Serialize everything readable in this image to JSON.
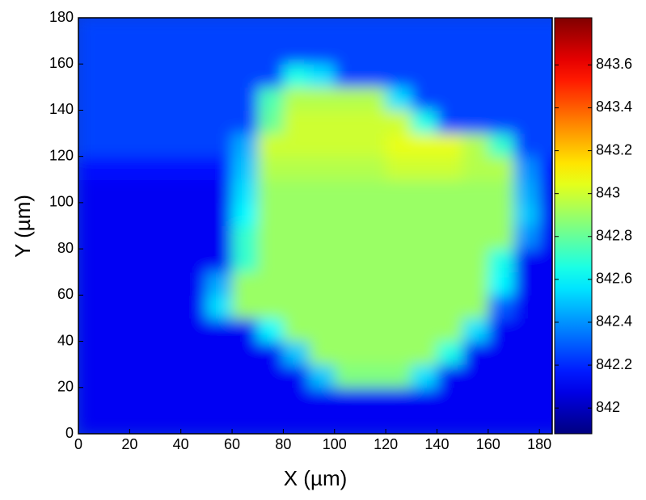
{
  "chart_data": {
    "type": "heatmap",
    "colormap": "jet",
    "xlabel": "X (µm)",
    "ylabel": "Y (µm)",
    "xlim": [
      0,
      185
    ],
    "ylim": [
      0,
      180
    ],
    "xticks": [
      0,
      20,
      40,
      60,
      80,
      100,
      120,
      140,
      160,
      180
    ],
    "yticks": [
      0,
      20,
      40,
      60,
      80,
      100,
      120,
      140,
      160,
      180
    ],
    "clim": [
      841.88,
      843.82
    ],
    "colorbar_ticks": [
      842,
      842.2,
      842.4,
      842.6,
      842.8,
      843,
      843.2,
      843.4,
      843.6
    ],
    "x": [
      5,
      15,
      25,
      35,
      45,
      55,
      65,
      75,
      85,
      95,
      105,
      115,
      125,
      135,
      145,
      155,
      165,
      175,
      185
    ],
    "y": [
      5,
      15,
      25,
      35,
      45,
      55,
      65,
      75,
      85,
      95,
      105,
      115,
      125,
      135,
      145,
      155,
      165,
      175
    ],
    "z": [
      [
        842.1,
        842.1,
        842.1,
        842.1,
        842.1,
        842.1,
        842.1,
        842.1,
        842.1,
        842.1,
        842.1,
        842.1,
        842.1,
        842.1,
        842.1,
        842.1,
        842.1,
        842.1,
        842.1
      ],
      [
        842.1,
        842.1,
        842.1,
        842.1,
        842.1,
        842.1,
        842.1,
        842.1,
        842.1,
        842.1,
        842.1,
        842.1,
        842.1,
        842.1,
        842.1,
        842.1,
        842.1,
        842.1,
        842.1
      ],
      [
        842.1,
        842.1,
        842.1,
        842.1,
        842.1,
        842.1,
        842.1,
        842.1,
        842.1,
        842.5,
        842.85,
        842.85,
        842.85,
        842.55,
        842.1,
        842.1,
        842.1,
        842.1,
        842.1
      ],
      [
        842.1,
        842.1,
        842.1,
        842.1,
        842.1,
        842.1,
        842.1,
        842.1,
        842.5,
        842.9,
        842.9,
        842.9,
        842.9,
        842.9,
        842.65,
        842.1,
        842.1,
        842.1,
        842.1
      ],
      [
        842.1,
        842.1,
        842.1,
        842.1,
        842.1,
        842.1,
        842.1,
        842.6,
        842.9,
        842.9,
        842.9,
        842.9,
        842.9,
        842.9,
        842.9,
        842.55,
        842.1,
        842.1,
        842.1
      ],
      [
        842.1,
        842.1,
        842.1,
        842.1,
        842.1,
        842.55,
        842.9,
        842.9,
        842.9,
        842.9,
        842.9,
        842.9,
        842.9,
        842.9,
        842.9,
        842.9,
        842.3,
        842.1,
        842.1
      ],
      [
        842.1,
        842.1,
        842.1,
        842.1,
        842.1,
        842.45,
        842.9,
        842.9,
        842.9,
        842.9,
        842.9,
        842.9,
        842.9,
        842.9,
        842.9,
        842.9,
        842.6,
        842.1,
        842.1
      ],
      [
        842.1,
        842.1,
        842.1,
        842.1,
        842.1,
        842.1,
        842.7,
        842.9,
        842.9,
        842.9,
        842.9,
        842.9,
        842.9,
        842.9,
        842.9,
        842.9,
        842.65,
        842.1,
        842.1
      ],
      [
        842.1,
        842.1,
        842.1,
        842.1,
        842.1,
        842.1,
        842.7,
        842.9,
        842.9,
        842.9,
        842.9,
        842.9,
        842.9,
        842.9,
        842.9,
        842.9,
        842.9,
        842.4,
        842.1
      ],
      [
        842.1,
        842.1,
        842.1,
        842.1,
        842.1,
        842.1,
        842.6,
        842.9,
        842.9,
        842.9,
        842.9,
        842.9,
        842.9,
        842.9,
        842.9,
        842.9,
        842.9,
        842.5,
        842.1
      ],
      [
        842.1,
        842.1,
        842.1,
        842.1,
        842.1,
        842.1,
        842.55,
        842.9,
        842.9,
        842.9,
        842.9,
        842.9,
        842.9,
        842.9,
        842.9,
        842.9,
        842.9,
        842.45,
        842.1
      ],
      [
        842.15,
        842.15,
        842.15,
        842.15,
        842.15,
        842.15,
        842.5,
        842.95,
        842.95,
        842.95,
        842.95,
        842.95,
        843,
        843,
        843,
        842.95,
        842.95,
        842.4,
        842.15
      ],
      [
        842.25,
        842.25,
        842.25,
        842.25,
        842.25,
        842.25,
        842.45,
        843,
        843,
        843,
        843,
        843,
        843.05,
        843.05,
        843.05,
        842.95,
        842.7,
        842.25,
        842.25
      ],
      [
        842.25,
        842.25,
        842.25,
        842.25,
        842.25,
        842.25,
        842.25,
        842.8,
        843,
        843,
        843,
        843,
        843,
        842.65,
        842.25,
        842.25,
        842.25,
        842.25,
        842.25
      ],
      [
        842.25,
        842.25,
        842.25,
        842.25,
        842.25,
        842.25,
        842.25,
        842.75,
        842.95,
        842.95,
        842.95,
        842.95,
        842.55,
        842.25,
        842.25,
        842.25,
        842.25,
        842.25,
        842.25
      ],
      [
        842.25,
        842.25,
        842.25,
        842.25,
        842.25,
        842.25,
        842.25,
        842.25,
        842.65,
        842.55,
        842.25,
        842.25,
        842.25,
        842.25,
        842.25,
        842.25,
        842.25,
        842.25,
        842.25
      ],
      [
        842.25,
        842.25,
        842.25,
        842.25,
        842.25,
        842.25,
        842.25,
        842.25,
        842.25,
        842.25,
        842.25,
        842.25,
        842.25,
        842.25,
        842.25,
        842.25,
        842.25,
        842.25,
        842.25
      ],
      [
        842.25,
        842.25,
        842.25,
        842.25,
        842.25,
        842.25,
        842.25,
        842.25,
        842.25,
        842.25,
        842.25,
        842.25,
        842.25,
        842.25,
        842.25,
        842.25,
        842.25,
        842.25,
        842.25
      ]
    ]
  }
}
